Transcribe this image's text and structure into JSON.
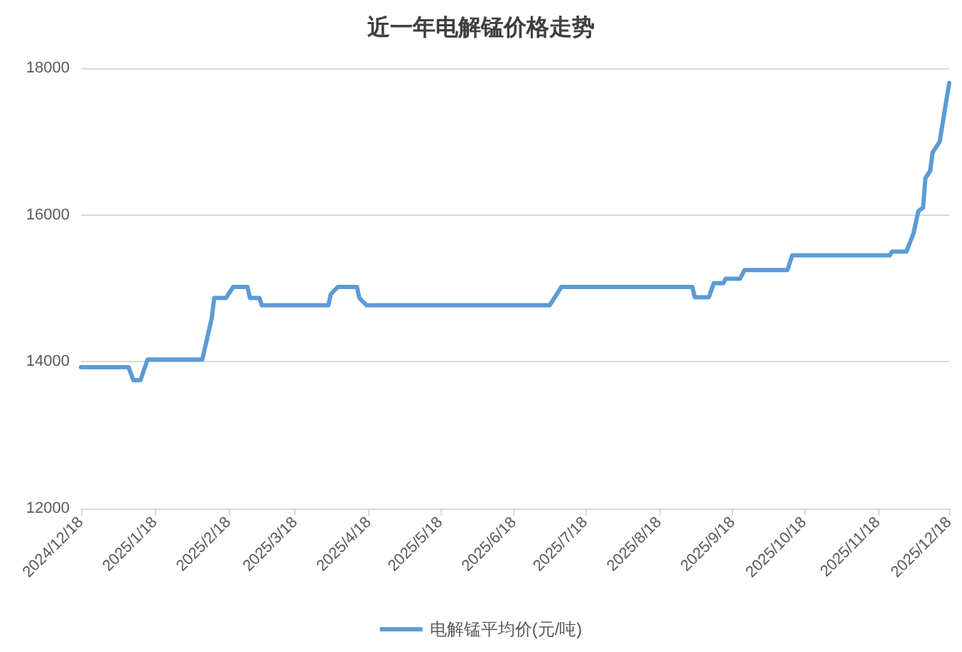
{
  "chart_data": {
    "type": "line",
    "title": "近一年电解锰价格走势",
    "x": [
      "2024-12-18",
      "2025-01-07",
      "2025-01-09",
      "2025-01-12",
      "2025-01-15",
      "2025-02-07",
      "2025-02-11",
      "2025-02-12",
      "2025-02-17",
      "2025-02-20",
      "2025-02-26",
      "2025-02-27",
      "2025-03-03",
      "2025-03-04",
      "2025-04-01",
      "2025-04-02",
      "2025-04-05",
      "2025-04-13",
      "2025-04-14",
      "2025-04-17",
      "2025-07-03",
      "2025-07-08",
      "2025-09-01",
      "2025-09-02",
      "2025-09-08",
      "2025-09-10",
      "2025-09-14",
      "2025-09-15",
      "2025-09-21",
      "2025-09-23",
      "2025-10-11",
      "2025-10-13",
      "2025-11-23",
      "2025-11-24",
      "2025-11-30",
      "2025-12-03",
      "2025-12-05",
      "2025-12-07",
      "2025-12-08",
      "2025-12-10",
      "2025-12-11",
      "2025-12-14",
      "2025-12-16",
      "2025-12-18"
    ],
    "series": [
      {
        "name": "电解锰平均价(元/吨)",
        "color": "#5b9bd5",
        "values": [
          13925,
          13925,
          13750,
          13750,
          14030,
          14030,
          14600,
          14870,
          14870,
          15020,
          15020,
          14870,
          14870,
          14770,
          14770,
          14920,
          15020,
          15020,
          14870,
          14770,
          14770,
          15020,
          15020,
          14880,
          14880,
          15070,
          15070,
          15130,
          15130,
          15250,
          15250,
          15450,
          15450,
          15500,
          15500,
          15750,
          16050,
          16100,
          16500,
          16600,
          16850,
          17000,
          17400,
          17800
        ]
      }
    ],
    "xlim": [
      "2024-12-18",
      "2025-12-18"
    ],
    "xticks": [
      {
        "value": "2024-12-18",
        "label": "2024/12/18"
      },
      {
        "value": "2025-01-18",
        "label": "2025/1/18"
      },
      {
        "value": "2025-02-18",
        "label": "2025/2/18"
      },
      {
        "value": "2025-03-18",
        "label": "2025/3/18"
      },
      {
        "value": "2025-04-18",
        "label": "2025/4/18"
      },
      {
        "value": "2025-05-18",
        "label": "2025/5/18"
      },
      {
        "value": "2025-06-18",
        "label": "2025/6/18"
      },
      {
        "value": "2025-07-18",
        "label": "2025/7/18"
      },
      {
        "value": "2025-08-18",
        "label": "2025/8/18"
      },
      {
        "value": "2025-09-18",
        "label": "2025/9/18"
      },
      {
        "value": "2025-10-18",
        "label": "2025/10/18"
      },
      {
        "value": "2025-11-18",
        "label": "2025/11/18"
      },
      {
        "value": "2025-12-18",
        "label": "2025/12/18"
      }
    ],
    "ylim": [
      12000,
      18000
    ],
    "yticks": [
      12000,
      14000,
      16000,
      18000
    ],
    "grid": "y",
    "legend": "bottom",
    "marker": "none",
    "line_style": "solid"
  }
}
